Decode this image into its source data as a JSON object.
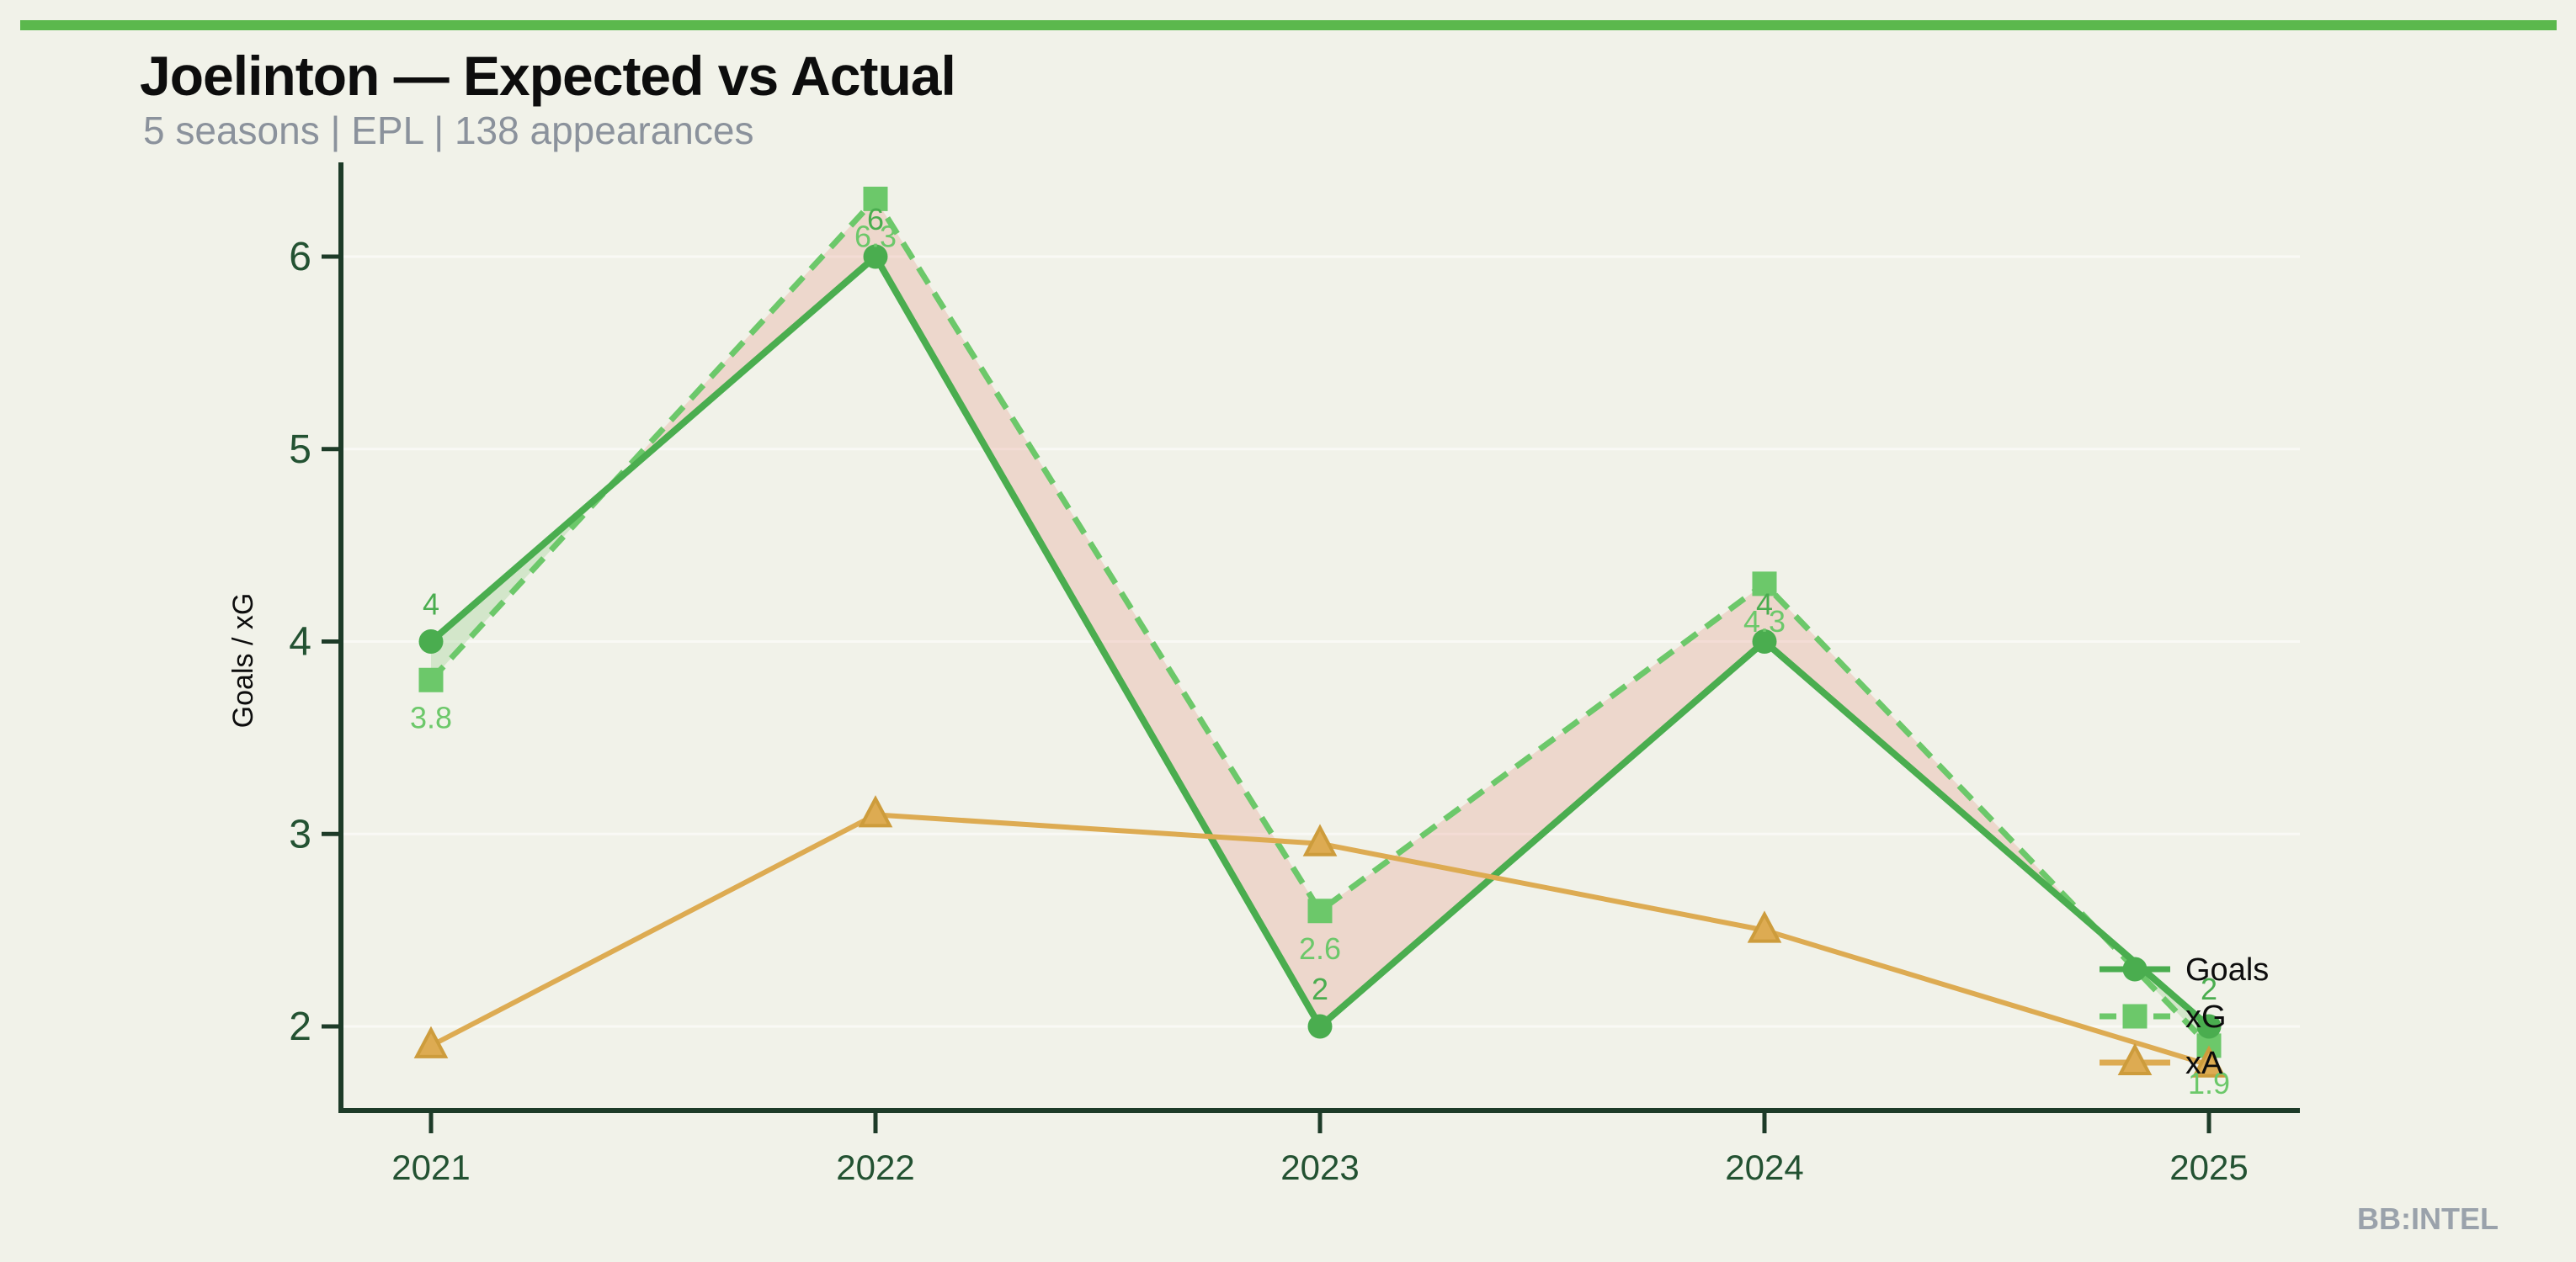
{
  "page": {
    "background_color": "#f1f2e9",
    "accent_bar_color": "#5bb84d"
  },
  "header": {
    "title": "Joelinton — Expected vs Actual",
    "subtitle": "5 seasons | EPL | 138 appearances"
  },
  "footer": {
    "branding": "BB:INTEL"
  },
  "chart_data": {
    "type": "line",
    "title": "Joelinton — Expected vs Actual",
    "subtitle": "5 seasons | EPL | 138 appearances",
    "xlabel": "",
    "ylabel": "Goals / xG",
    "categories": [
      2021,
      2022,
      2023,
      2024,
      2025
    ],
    "yticks": [
      2,
      3,
      4,
      5,
      6
    ],
    "ylim": [
      1.6,
      6.55
    ],
    "grid": "faint white horizontal gridlines at integer ticks",
    "axis_color": "#1d3b28",
    "tick_label_color": "#235232",
    "legend": {
      "position": "inside-right near 2025",
      "items": [
        "Goals",
        "xG",
        "xA"
      ],
      "label_color": "#0d0d0d"
    },
    "series": [
      {
        "name": "Goals",
        "linestyle": "solid",
        "marker": "circle",
        "color": "#4aad4f",
        "values": [
          4,
          6,
          2,
          4,
          2
        ],
        "point_labels": [
          "4",
          "6",
          "2",
          "4",
          "2"
        ]
      },
      {
        "name": "xG",
        "linestyle": "dashed",
        "marker": "square",
        "color": "#6cc86a",
        "values": [
          3.8,
          6.3,
          2.6,
          4.3,
          1.9
        ],
        "point_labels": [
          "3.8",
          "6.3",
          "2.6",
          "4.3",
          "1.9"
        ]
      },
      {
        "name": "xA",
        "linestyle": "solid",
        "marker": "triangle",
        "color": "#ddab52",
        "marker_edge_color": "#cd9c3c",
        "values": [
          1.9,
          3.1,
          2.95,
          2.5,
          1.8
        ],
        "point_labels": []
      }
    ],
    "fill_between": {
      "series_a": "Goals",
      "series_b": "xG",
      "above_color": "rgba(124,196,110,0.25)",
      "below_color": "rgba(222,118,98,0.22)"
    }
  }
}
